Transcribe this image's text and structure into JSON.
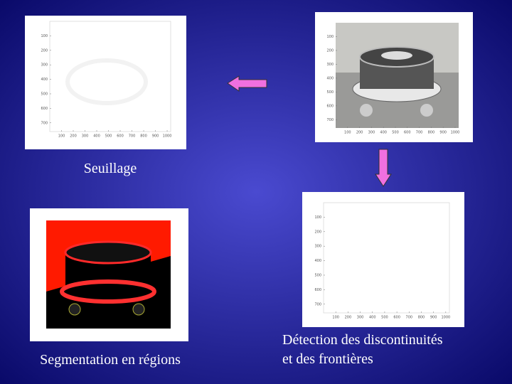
{
  "captions": {
    "thresholding": "Seuillage",
    "segmentation": "Segmentation en régions",
    "edges": [
      "Détection des discontinuités",
      "et des frontières"
    ]
  },
  "plots": [
    {
      "yticks": [
        100,
        200,
        300,
        400,
        500,
        600,
        700
      ],
      "xticks": [
        100,
        200,
        300,
        400,
        500,
        600,
        700,
        800,
        900,
        1000
      ]
    },
    {
      "yticks": [
        100,
        200,
        300,
        400,
        500,
        600,
        700
      ],
      "xticks": [
        100,
        200,
        300,
        400,
        500,
        600,
        700,
        800,
        900,
        1000
      ]
    },
    {
      "yticks": [
        100,
        200,
        300,
        400,
        500,
        600,
        700
      ],
      "xticks": [
        100,
        200,
        300,
        400,
        500,
        600,
        700,
        800,
        900,
        1000
      ]
    }
  ]
}
